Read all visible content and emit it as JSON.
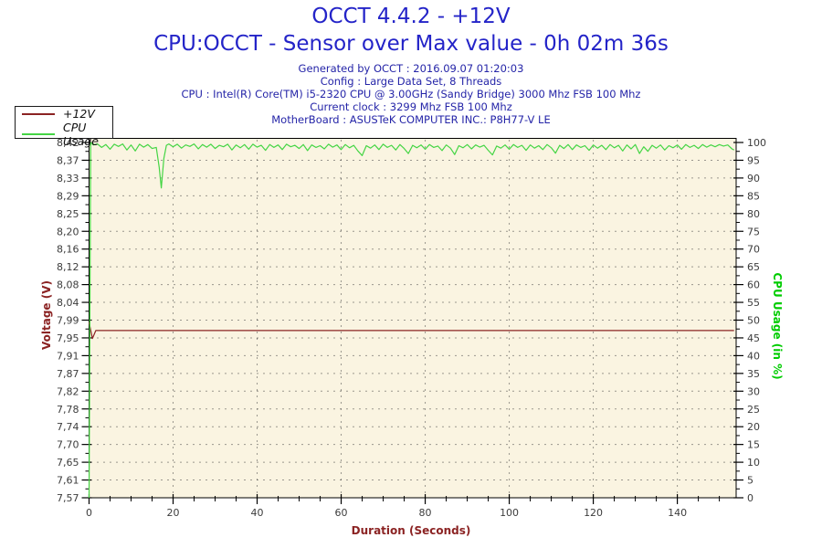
{
  "header": {
    "title": "OCCT 4.4.2 - +12V",
    "subtitle": "CPU:OCCT - Sensor over Max value - 0h 02m 36s",
    "title_color": "#2424c8",
    "info_color": "#2525a8",
    "info_lines": [
      "Generated by OCCT : 2016.09.07 01:20:03",
      "Config : Large Data Set, 8 Threads",
      "CPU : Intel(R) Core(TM) i5-2320 CPU @ 3.00GHz (Sandy Bridge) 3000 Mhz FSB 100 Mhz",
      "Current clock : 3299 Mhz FSB 100 Mhz",
      "MotherBoard : ASUSTeK COMPUTER INC.: P8H77-V LE"
    ]
  },
  "legend": {
    "items": [
      {
        "label": "+12V",
        "color": "#8b2323"
      },
      {
        "label": "CPU Usage",
        "color": "#44d544"
      }
    ]
  },
  "chart_data": {
    "type": "line",
    "plot_bg": "#faf4e1",
    "grid_color": "#3a3a3a",
    "x_axis": {
      "label": "Duration (Seconds)",
      "label_color": "#8b2323",
      "min": 0,
      "max": 154,
      "tick_labels": [
        "0",
        "20",
        "40",
        "60",
        "80",
        "100",
        "120",
        "140"
      ],
      "minor_step": 5
    },
    "y_left": {
      "label": "Voltage (V)",
      "label_color": "#8b2323",
      "min": 7.57,
      "max": 8.42,
      "tick_labels": [
        "8,42",
        "8,37",
        "8,33",
        "8,29",
        "8,25",
        "8,20",
        "8,16",
        "8,12",
        "8,08",
        "8,04",
        "7,99",
        "7,95",
        "7,91",
        "7,87",
        "7,82",
        "7,78",
        "7,74",
        "7,70",
        "7,65",
        "7,61",
        "7,57"
      ]
    },
    "y_right": {
      "label": "CPU Usage (in %)",
      "label_color": "#00cc00",
      "min": 0,
      "max": 100,
      "tick_labels": [
        "100",
        "95",
        "90",
        "85",
        "80",
        "75",
        "70",
        "65",
        "60",
        "55",
        "50",
        "45",
        "40",
        "35",
        "30",
        "25",
        "20",
        "15",
        "10",
        "5",
        "0"
      ]
    },
    "series": [
      {
        "name": "+12V",
        "axis": "left",
        "color": "#8b2323",
        "points": [
          [
            0,
            7.99
          ],
          [
            0.8,
            7.951
          ],
          [
            1.6,
            7.97
          ],
          [
            153.5,
            7.97
          ]
        ]
      },
      {
        "name": "CPU Usage",
        "axis": "right",
        "color": "#44d544",
        "points": [
          [
            0,
            0
          ],
          [
            0.4,
            100
          ],
          [
            1,
            99.3
          ],
          [
            2,
            99.6
          ],
          [
            3,
            98.6
          ],
          [
            4,
            99.4
          ],
          [
            5,
            98.1
          ],
          [
            6,
            99.5
          ],
          [
            7,
            98.9
          ],
          [
            8,
            99.6
          ],
          [
            9,
            97.9
          ],
          [
            10,
            99.3
          ],
          [
            11,
            97.6
          ],
          [
            12,
            99.5
          ],
          [
            13,
            98.7
          ],
          [
            14,
            99.4
          ],
          [
            15,
            98.3
          ],
          [
            16,
            98.6
          ],
          [
            16.7,
            93
          ],
          [
            17.2,
            87.2
          ],
          [
            17.8,
            95.5
          ],
          [
            18.4,
            99.2
          ],
          [
            19,
            99.6
          ],
          [
            20,
            98.8
          ],
          [
            21,
            99.5
          ],
          [
            22,
            98.4
          ],
          [
            23,
            99.3
          ],
          [
            24,
            98.9
          ],
          [
            25,
            99.6
          ],
          [
            26,
            98.2
          ],
          [
            27,
            99.4
          ],
          [
            28,
            98.7
          ],
          [
            29,
            99.5
          ],
          [
            30,
            98.3
          ],
          [
            31,
            99.2
          ],
          [
            32,
            98.8
          ],
          [
            33,
            99.5
          ],
          [
            34,
            97.9
          ],
          [
            35,
            99.3
          ],
          [
            36,
            98.5
          ],
          [
            37,
            99.4
          ],
          [
            38,
            98.1
          ],
          [
            39,
            99.5
          ],
          [
            40,
            98.7
          ],
          [
            41,
            99.2
          ],
          [
            42,
            97.8
          ],
          [
            43,
            99.4
          ],
          [
            44,
            98.6
          ],
          [
            45,
            99.3
          ],
          [
            46,
            98
          ],
          [
            47,
            99.5
          ],
          [
            48,
            98.8
          ],
          [
            49,
            99.2
          ],
          [
            50,
            98.3
          ],
          [
            51,
            99.4
          ],
          [
            52,
            97.7
          ],
          [
            53,
            99.3
          ],
          [
            54,
            98.6
          ],
          [
            55,
            99.1
          ],
          [
            56,
            98.2
          ],
          [
            57,
            99.5
          ],
          [
            58,
            98.7
          ],
          [
            59,
            99.3
          ],
          [
            60,
            98
          ],
          [
            61,
            99.4
          ],
          [
            62,
            98.5
          ],
          [
            63,
            99.2
          ],
          [
            64,
            97.6
          ],
          [
            65,
            96.3
          ],
          [
            66,
            99.1
          ],
          [
            67,
            98.4
          ],
          [
            68,
            99.3
          ],
          [
            69,
            98
          ],
          [
            70,
            99.5
          ],
          [
            71,
            98.6
          ],
          [
            72,
            99.2
          ],
          [
            73,
            97.9
          ],
          [
            74,
            99.4
          ],
          [
            75,
            98.3
          ],
          [
            76,
            96.9
          ],
          [
            77,
            99.2
          ],
          [
            78,
            98.5
          ],
          [
            79,
            99.3
          ],
          [
            80,
            98.1
          ],
          [
            81,
            99.4
          ],
          [
            82,
            98.6
          ],
          [
            83,
            99
          ],
          [
            84,
            97.7
          ],
          [
            85,
            99.3
          ],
          [
            86,
            98.4
          ],
          [
            87,
            96.6
          ],
          [
            88,
            99.1
          ],
          [
            89,
            98.5
          ],
          [
            90,
            99.4
          ],
          [
            91,
            98.2
          ],
          [
            92,
            99.3
          ],
          [
            93,
            98.7
          ],
          [
            94,
            99.2
          ],
          [
            95,
            97.8
          ],
          [
            96,
            96.5
          ],
          [
            97,
            99
          ],
          [
            98,
            98.4
          ],
          [
            99,
            99.3
          ],
          [
            100,
            98.1
          ],
          [
            101,
            99.4
          ],
          [
            102,
            98.6
          ],
          [
            103,
            99.2
          ],
          [
            104,
            97.8
          ],
          [
            105,
            99.3
          ],
          [
            106,
            98.4
          ],
          [
            107,
            99.1
          ],
          [
            108,
            98
          ],
          [
            109,
            99.4
          ],
          [
            110,
            98.5
          ],
          [
            111,
            97
          ],
          [
            112,
            99.2
          ],
          [
            113,
            98.3
          ],
          [
            114,
            99.4
          ],
          [
            115,
            98
          ],
          [
            116,
            99.3
          ],
          [
            117,
            98.6
          ],
          [
            118,
            99.1
          ],
          [
            119,
            97.8
          ],
          [
            120,
            99.3
          ],
          [
            121,
            98.4
          ],
          [
            122,
            99.2
          ],
          [
            123,
            98
          ],
          [
            124,
            99.4
          ],
          [
            125,
            98.5
          ],
          [
            126,
            99.2
          ],
          [
            127,
            97.6
          ],
          [
            128,
            99.3
          ],
          [
            129,
            98.2
          ],
          [
            130,
            99.4
          ],
          [
            131,
            96.9
          ],
          [
            132,
            98.8
          ],
          [
            133,
            97.5
          ],
          [
            134,
            99.2
          ],
          [
            135,
            98.4
          ],
          [
            136,
            99.3
          ],
          [
            137,
            97.9
          ],
          [
            138,
            99.1
          ],
          [
            139,
            98.5
          ],
          [
            140,
            99.3
          ],
          [
            141,
            98.1
          ],
          [
            142,
            99.4
          ],
          [
            143,
            98.6
          ],
          [
            144,
            99.2
          ],
          [
            145,
            98.3
          ],
          [
            146,
            99.4
          ],
          [
            147,
            98.7
          ],
          [
            148,
            99.3
          ],
          [
            149,
            98.8
          ],
          [
            150,
            99.4
          ],
          [
            151,
            99
          ],
          [
            152,
            99.3
          ],
          [
            153,
            98.2
          ],
          [
            153.5,
            97.9
          ]
        ]
      }
    ]
  }
}
